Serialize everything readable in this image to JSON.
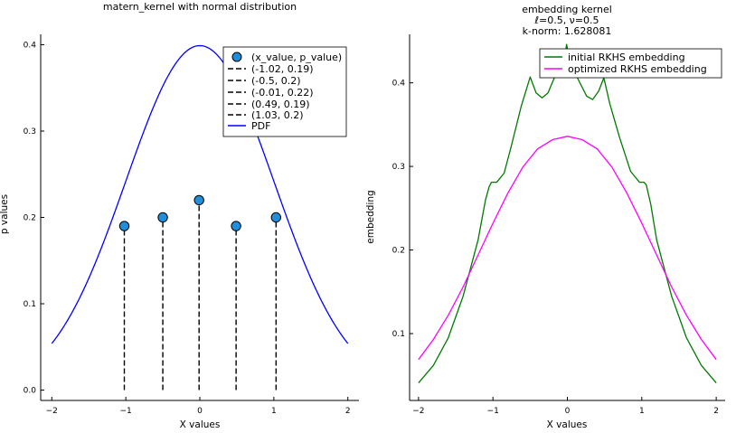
{
  "chart_data": [
    {
      "type": "scatter",
      "title": "matern_kernel with normal distribution",
      "xlabel": "X values",
      "ylabel": "p values",
      "xlim": [
        -2.15,
        2.15
      ],
      "ylim": [
        -0.012,
        0.412
      ],
      "xticks": [
        -2,
        -1,
        0,
        1,
        2
      ],
      "yticks": [
        0.0,
        0.1,
        0.2,
        0.3,
        0.4
      ],
      "xtick_labels": [
        "−2",
        "−1",
        "0",
        "1",
        "2"
      ],
      "ytick_labels": [
        "0.0",
        "0.1",
        "0.2",
        "0.3",
        "0.4"
      ],
      "grid": false,
      "legend_position": "top-right",
      "points": {
        "name": "(x_value, p_value)",
        "color": "#1f8fdc",
        "x": [
          -1.02,
          -0.5,
          -0.01,
          0.49,
          1.03
        ],
        "y": [
          0.19,
          0.2,
          0.22,
          0.19,
          0.2
        ]
      },
      "stems": [
        {
          "name": "(-1.02, 0.19)",
          "x": -1.02,
          "y": 0.19
        },
        {
          "name": "(-0.5, 0.2)",
          "x": -0.5,
          "y": 0.2
        },
        {
          "name": "(-0.01, 0.22)",
          "x": -0.01,
          "y": 0.22
        },
        {
          "name": "(0.49, 0.19)",
          "x": 0.49,
          "y": 0.19
        },
        {
          "name": "(1.03, 0.2)",
          "x": 1.03,
          "y": 0.2
        }
      ],
      "pdf": {
        "name": "PDF",
        "color": "#0000ff",
        "mean": 0.0,
        "std": 1.0,
        "x_range": [
          -2.0,
          2.0
        ],
        "x": [
          -2.0,
          -1.8,
          -1.6,
          -1.4,
          -1.2,
          -1.0,
          -0.8,
          -0.6,
          -0.4,
          -0.2,
          0.0,
          0.2,
          0.4,
          0.6,
          0.8,
          1.0,
          1.2,
          1.4,
          1.6,
          1.8,
          2.0
        ],
        "y": [
          0.054,
          0.079,
          0.111,
          0.15,
          0.194,
          0.242,
          0.29,
          0.333,
          0.368,
          0.391,
          0.399,
          0.391,
          0.368,
          0.333,
          0.29,
          0.242,
          0.194,
          0.15,
          0.111,
          0.079,
          0.054
        ]
      },
      "stem_color": "#000000"
    },
    {
      "type": "line",
      "title": "embedding kernel",
      "subtitle_lines": [
        "ℓ=0.5, ν=0.5",
        "k-norm: 1.628081"
      ],
      "xlabel": "X values",
      "ylabel": "embedding",
      "xlim": [
        -2.12,
        2.12
      ],
      "ylim": [
        0.02,
        0.458
      ],
      "xticks": [
        -2,
        -1,
        0,
        1,
        2
      ],
      "yticks": [
        0.1,
        0.2,
        0.3,
        0.4
      ],
      "xtick_labels": [
        "−2",
        "−1",
        "0",
        "1",
        "2"
      ],
      "ytick_labels": [
        "0.1",
        "0.2",
        "0.3",
        "0.4"
      ],
      "grid": false,
      "legend_position": "top-right",
      "series": [
        {
          "name": "initial RKHS embedding",
          "color": "#007a00",
          "x": [
            -2.0,
            -1.8,
            -1.6,
            -1.4,
            -1.2,
            -1.1,
            -1.05,
            -1.02,
            -0.95,
            -0.85,
            -0.76,
            -0.62,
            -0.5,
            -0.42,
            -0.34,
            -0.26,
            -0.18,
            -0.09,
            -0.02,
            -0.01,
            0.0,
            0.02,
            0.09,
            0.18,
            0.26,
            0.34,
            0.42,
            0.49,
            0.57,
            0.7,
            0.85,
            0.97,
            1.03,
            1.06,
            1.12,
            1.2,
            1.4,
            1.6,
            1.8,
            2.0
          ],
          "values": [
            0.041,
            0.062,
            0.095,
            0.145,
            0.212,
            0.26,
            0.276,
            0.281,
            0.281,
            0.292,
            0.322,
            0.372,
            0.407,
            0.388,
            0.382,
            0.388,
            0.405,
            0.422,
            0.44,
            0.446,
            0.441,
            0.435,
            0.414,
            0.398,
            0.384,
            0.38,
            0.39,
            0.406,
            0.375,
            0.335,
            0.294,
            0.281,
            0.281,
            0.278,
            0.255,
            0.212,
            0.145,
            0.095,
            0.062,
            0.041
          ]
        },
        {
          "name": "optimized RKHS embedding",
          "color": "#ff00ff",
          "x": [
            -2.0,
            -1.8,
            -1.6,
            -1.4,
            -1.2,
            -1.0,
            -0.8,
            -0.6,
            -0.4,
            -0.2,
            0.0,
            0.2,
            0.4,
            0.6,
            0.8,
            1.0,
            1.2,
            1.4,
            1.6,
            1.8,
            2.0
          ],
          "values": [
            0.069,
            0.093,
            0.122,
            0.156,
            0.194,
            0.232,
            0.268,
            0.299,
            0.321,
            0.332,
            0.336,
            0.332,
            0.321,
            0.299,
            0.268,
            0.232,
            0.194,
            0.156,
            0.122,
            0.093,
            0.069
          ]
        }
      ]
    }
  ]
}
